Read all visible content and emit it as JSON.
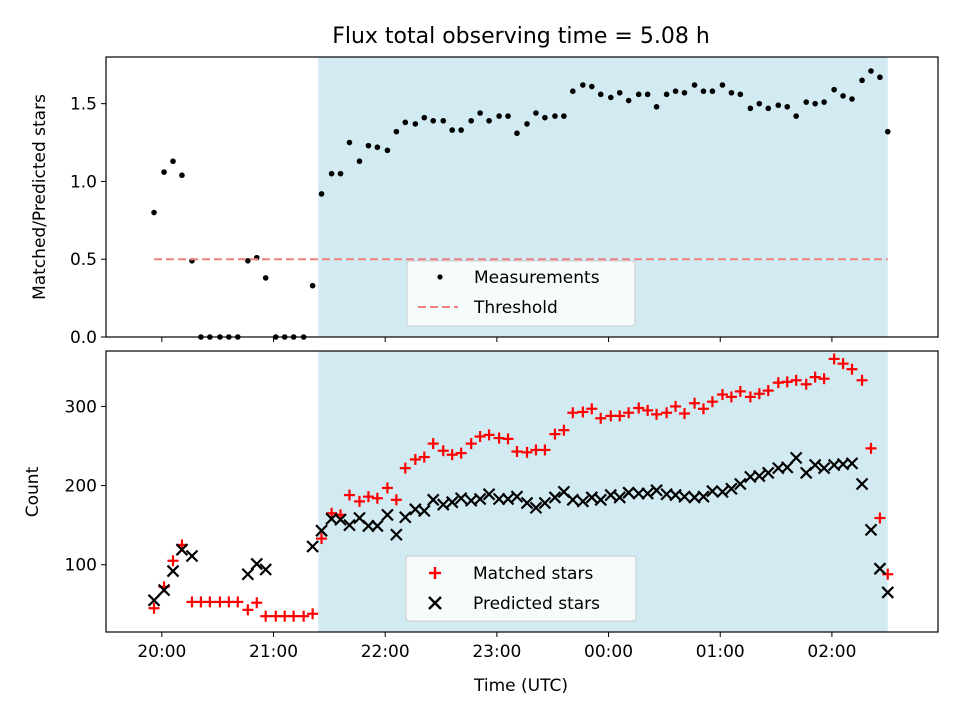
{
  "figure_title": "Flux total observing time = 5.08 h",
  "chart_data": [
    {
      "type": "scatter",
      "ylabel": "Matched/Predicted stars",
      "xlabel": "",
      "ylim": [
        0,
        1.8
      ],
      "yticks": [
        "0.0",
        "0.5",
        "1.0",
        "1.5"
      ],
      "ytick_values": [
        0,
        0.5,
        1.0,
        1.5
      ],
      "xlim_hours": [
        19.5,
        26.95
      ],
      "shaded_span_hours": [
        21.4,
        26.5
      ],
      "shade_color": "#add8e6",
      "legend": {
        "placement": "lower-center",
        "entries": [
          "Measurements",
          "Threshold"
        ]
      },
      "series": [
        {
          "name": "Measurements",
          "marker": "dot",
          "color": "#000000",
          "x_hours": [
            19.93,
            20.02,
            20.1,
            20.18,
            20.27,
            20.35,
            20.43,
            20.52,
            20.6,
            20.68,
            20.77,
            20.85,
            20.93,
            21.02,
            21.1,
            21.18,
            21.27,
            21.35,
            21.43,
            21.52,
            21.6,
            21.68,
            21.77,
            21.85,
            21.93,
            22.02,
            22.1,
            22.18,
            22.27,
            22.35,
            22.43,
            22.52,
            22.6,
            22.68,
            22.77,
            22.85,
            22.93,
            23.02,
            23.1,
            23.18,
            23.27,
            23.35,
            23.43,
            23.52,
            23.6,
            23.68,
            23.77,
            23.85,
            23.93,
            24.02,
            24.1,
            24.18,
            24.27,
            24.35,
            24.43,
            24.52,
            24.6,
            24.68,
            24.77,
            24.85,
            24.93,
            25.02,
            25.1,
            25.18,
            25.27,
            25.35,
            25.43,
            25.52,
            25.6,
            25.68,
            25.77,
            25.85,
            25.93,
            26.02,
            26.1,
            26.18,
            26.27,
            26.35,
            26.43,
            26.5
          ],
          "y": [
            0.8,
            1.06,
            1.13,
            1.04,
            0.49,
            0.0,
            0.0,
            0.0,
            0.0,
            0.0,
            0.49,
            0.51,
            0.38,
            0.0,
            0.0,
            0.0,
            0.0,
            0.33,
            0.92,
            1.05,
            1.05,
            1.25,
            1.13,
            1.23,
            1.22,
            1.2,
            1.32,
            1.38,
            1.37,
            1.41,
            1.39,
            1.39,
            1.33,
            1.33,
            1.39,
            1.44,
            1.39,
            1.42,
            1.42,
            1.31,
            1.37,
            1.44,
            1.41,
            1.42,
            1.42,
            1.58,
            1.62,
            1.61,
            1.56,
            1.54,
            1.57,
            1.52,
            1.56,
            1.56,
            1.48,
            1.56,
            1.58,
            1.57,
            1.62,
            1.58,
            1.58,
            1.62,
            1.57,
            1.56,
            1.47,
            1.5,
            1.47,
            1.49,
            1.48,
            1.42,
            1.51,
            1.5,
            1.51,
            1.59,
            1.55,
            1.53,
            1.65,
            1.71,
            1.67,
            1.32
          ]
        },
        {
          "name": "Threshold",
          "marker": "dashed-line",
          "color": "#f08080",
          "x_hours": [
            19.93,
            26.5
          ],
          "y": [
            0.5,
            0.5
          ]
        }
      ]
    },
    {
      "type": "scatter",
      "ylabel": "Count",
      "xlabel": "Time (UTC)",
      "ylim": [
        15,
        370
      ],
      "yticks": [
        "100",
        "200",
        "300"
      ],
      "ytick_values": [
        100,
        200,
        300
      ],
      "xlim_hours": [
        19.5,
        26.95
      ],
      "xticks": [
        "20:00",
        "21:00",
        "22:00",
        "23:00",
        "00:00",
        "01:00",
        "02:00"
      ],
      "xtick_hours": [
        20,
        21,
        22,
        23,
        24,
        25,
        26
      ],
      "shaded_span_hours": [
        21.4,
        26.5
      ],
      "shade_color": "#add8e6",
      "legend": {
        "placement": "lower-center",
        "entries": [
          "Matched stars",
          "Predicted stars"
        ]
      },
      "series": [
        {
          "name": "Matched stars",
          "marker": "plus",
          "color": "#ff0000",
          "x_hours": [
            19.93,
            20.02,
            20.1,
            20.18,
            20.27,
            20.35,
            20.43,
            20.52,
            20.6,
            20.68,
            20.77,
            20.85,
            20.93,
            21.02,
            21.1,
            21.18,
            21.27,
            21.35,
            21.43,
            21.52,
            21.6,
            21.68,
            21.77,
            21.85,
            21.93,
            22.02,
            22.1,
            22.18,
            22.27,
            22.35,
            22.43,
            22.52,
            22.6,
            22.68,
            22.77,
            22.85,
            22.93,
            23.02,
            23.1,
            23.18,
            23.27,
            23.35,
            23.43,
            23.52,
            23.6,
            23.68,
            23.77,
            23.85,
            23.93,
            24.02,
            24.1,
            24.18,
            24.27,
            24.35,
            24.43,
            24.52,
            24.6,
            24.68,
            24.77,
            24.85,
            24.93,
            25.02,
            25.1,
            25.18,
            25.27,
            25.35,
            25.43,
            25.52,
            25.6,
            25.68,
            25.77,
            25.85,
            25.93,
            26.02,
            26.1,
            26.18,
            26.27,
            26.35,
            26.43,
            26.5
          ],
          "y": [
            45,
            72,
            105,
            125,
            53,
            53,
            53,
            53,
            53,
            53,
            43,
            52,
            35,
            35,
            35,
            35,
            35,
            38,
            133,
            165,
            163,
            188,
            180,
            186,
            184,
            197,
            182,
            222,
            233,
            236,
            253,
            244,
            239,
            241,
            253,
            262,
            264,
            260,
            259,
            243,
            242,
            245,
            245,
            265,
            270,
            292,
            293,
            297,
            285,
            288,
            288,
            292,
            298,
            295,
            290,
            292,
            300,
            291,
            304,
            297,
            306,
            315,
            312,
            319,
            312,
            316,
            320,
            330,
            331,
            333,
            328,
            337,
            335,
            360,
            354,
            347,
            333,
            247,
            159,
            88
          ]
        },
        {
          "name": "Predicted stars",
          "marker": "x",
          "color": "#000000",
          "x_hours": [
            19.93,
            20.02,
            20.1,
            20.18,
            20.27,
            20.35,
            20.43,
            20.52,
            20.6,
            20.68,
            20.77,
            20.85,
            20.93,
            21.02,
            21.1,
            21.18,
            21.27,
            21.35,
            21.43,
            21.52,
            21.6,
            21.68,
            21.77,
            21.85,
            21.93,
            22.02,
            22.1,
            22.18,
            22.27,
            22.35,
            22.43,
            22.52,
            22.6,
            22.68,
            22.77,
            22.85,
            22.93,
            23.02,
            23.1,
            23.18,
            23.27,
            23.35,
            23.43,
            23.52,
            23.6,
            23.68,
            23.77,
            23.85,
            23.93,
            24.02,
            24.1,
            24.18,
            24.27,
            24.35,
            24.43,
            24.52,
            24.6,
            24.68,
            24.77,
            24.85,
            24.93,
            25.02,
            25.1,
            25.18,
            25.27,
            25.35,
            25.43,
            25.52,
            25.6,
            25.68,
            25.77,
            25.85,
            25.93,
            26.02,
            26.1,
            26.18,
            26.27,
            26.35,
            26.43,
            26.5
          ],
          "y": [
            55,
            68,
            92,
            119,
            111,
            null,
            null,
            null,
            null,
            null,
            88,
            101,
            94,
            null,
            null,
            null,
            null,
            123,
            143,
            158,
            157,
            150,
            159,
            149,
            149,
            163,
            138,
            160,
            170,
            168,
            182,
            176,
            179,
            184,
            181,
            183,
            189,
            183,
            183,
            186,
            178,
            172,
            178,
            185,
            192,
            182,
            180,
            185,
            182,
            188,
            185,
            191,
            190,
            190,
            194,
            189,
            188,
            186,
            185,
            186,
            193,
            192,
            196,
            202,
            211,
            212,
            216,
            222,
            223,
            235,
            216,
            226,
            222,
            226,
            227,
            228,
            202,
            144,
            95,
            65
          ]
        }
      ]
    }
  ]
}
